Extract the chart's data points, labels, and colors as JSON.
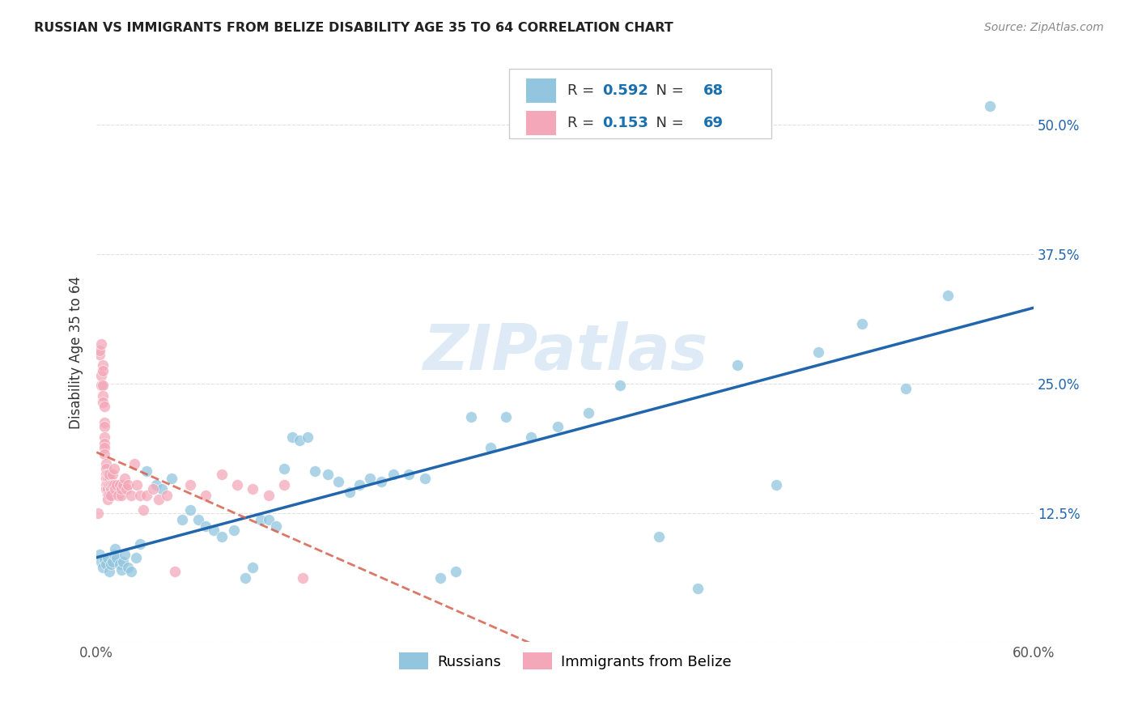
{
  "title": "RUSSIAN VS IMMIGRANTS FROM BELIZE DISABILITY AGE 35 TO 64 CORRELATION CHART",
  "source": "Source: ZipAtlas.com",
  "ylabel": "Disability Age 35 to 64",
  "xlim": [
    0.0,
    0.6
  ],
  "ylim": [
    0.0,
    0.56
  ],
  "R_russian": 0.592,
  "N_russian": 68,
  "R_belize": 0.153,
  "N_belize": 69,
  "blue_color": "#92c5de",
  "pink_color": "#f4a7b9",
  "blue_line_color": "#2166ac",
  "pink_line_color": "#d6604d",
  "grid_color": "#e0e0e0",
  "legend_R_color": "#1a6faf",
  "russian_points_x": [
    0.002,
    0.003,
    0.004,
    0.005,
    0.006,
    0.007,
    0.008,
    0.009,
    0.01,
    0.011,
    0.012,
    0.013,
    0.015,
    0.016,
    0.017,
    0.018,
    0.02,
    0.022,
    0.025,
    0.028,
    0.032,
    0.038,
    0.042,
    0.048,
    0.055,
    0.06,
    0.065,
    0.07,
    0.075,
    0.08,
    0.088,
    0.095,
    0.1,
    0.105,
    0.11,
    0.115,
    0.12,
    0.125,
    0.13,
    0.135,
    0.14,
    0.148,
    0.155,
    0.162,
    0.168,
    0.175,
    0.182,
    0.19,
    0.2,
    0.21,
    0.22,
    0.23,
    0.24,
    0.252,
    0.262,
    0.278,
    0.295,
    0.315,
    0.335,
    0.36,
    0.385,
    0.41,
    0.435,
    0.462,
    0.49,
    0.518,
    0.545,
    0.572
  ],
  "russian_points_y": [
    0.085,
    0.078,
    0.072,
    0.08,
    0.075,
    0.082,
    0.068,
    0.075,
    0.078,
    0.085,
    0.09,
    0.082,
    0.075,
    0.07,
    0.078,
    0.085,
    0.072,
    0.068,
    0.082,
    0.095,
    0.165,
    0.152,
    0.148,
    0.158,
    0.118,
    0.128,
    0.118,
    0.112,
    0.108,
    0.102,
    0.108,
    0.062,
    0.072,
    0.118,
    0.118,
    0.112,
    0.168,
    0.198,
    0.195,
    0.198,
    0.165,
    0.162,
    0.155,
    0.145,
    0.152,
    0.158,
    0.155,
    0.162,
    0.162,
    0.158,
    0.062,
    0.068,
    0.218,
    0.188,
    0.218,
    0.198,
    0.208,
    0.222,
    0.248,
    0.102,
    0.052,
    0.268,
    0.152,
    0.28,
    0.308,
    0.245,
    0.335,
    0.518
  ],
  "belize_points_x": [
    0.001,
    0.002,
    0.002,
    0.003,
    0.003,
    0.003,
    0.004,
    0.004,
    0.004,
    0.004,
    0.004,
    0.005,
    0.005,
    0.005,
    0.005,
    0.005,
    0.005,
    0.005,
    0.006,
    0.006,
    0.006,
    0.006,
    0.006,
    0.006,
    0.007,
    0.007,
    0.007,
    0.007,
    0.007,
    0.007,
    0.008,
    0.008,
    0.008,
    0.008,
    0.009,
    0.009,
    0.009,
    0.01,
    0.01,
    0.011,
    0.011,
    0.012,
    0.013,
    0.014,
    0.015,
    0.016,
    0.016,
    0.017,
    0.018,
    0.019,
    0.02,
    0.022,
    0.024,
    0.026,
    0.028,
    0.03,
    0.032,
    0.036,
    0.04,
    0.045,
    0.05,
    0.06,
    0.07,
    0.08,
    0.09,
    0.1,
    0.11,
    0.12,
    0.132
  ],
  "belize_points_y": [
    0.125,
    0.278,
    0.282,
    0.288,
    0.248,
    0.258,
    0.268,
    0.262,
    0.248,
    0.238,
    0.232,
    0.228,
    0.212,
    0.208,
    0.198,
    0.192,
    0.188,
    0.182,
    0.172,
    0.168,
    0.162,
    0.158,
    0.152,
    0.148,
    0.162,
    0.158,
    0.152,
    0.148,
    0.142,
    0.138,
    0.158,
    0.152,
    0.142,
    0.162,
    0.152,
    0.148,
    0.142,
    0.162,
    0.152,
    0.168,
    0.152,
    0.148,
    0.152,
    0.142,
    0.152,
    0.142,
    0.148,
    0.152,
    0.158,
    0.148,
    0.152,
    0.142,
    0.172,
    0.152,
    0.142,
    0.128,
    0.142,
    0.148,
    0.138,
    0.142,
    0.068,
    0.152,
    0.142,
    0.162,
    0.152,
    0.148,
    0.142,
    0.152,
    0.062
  ]
}
